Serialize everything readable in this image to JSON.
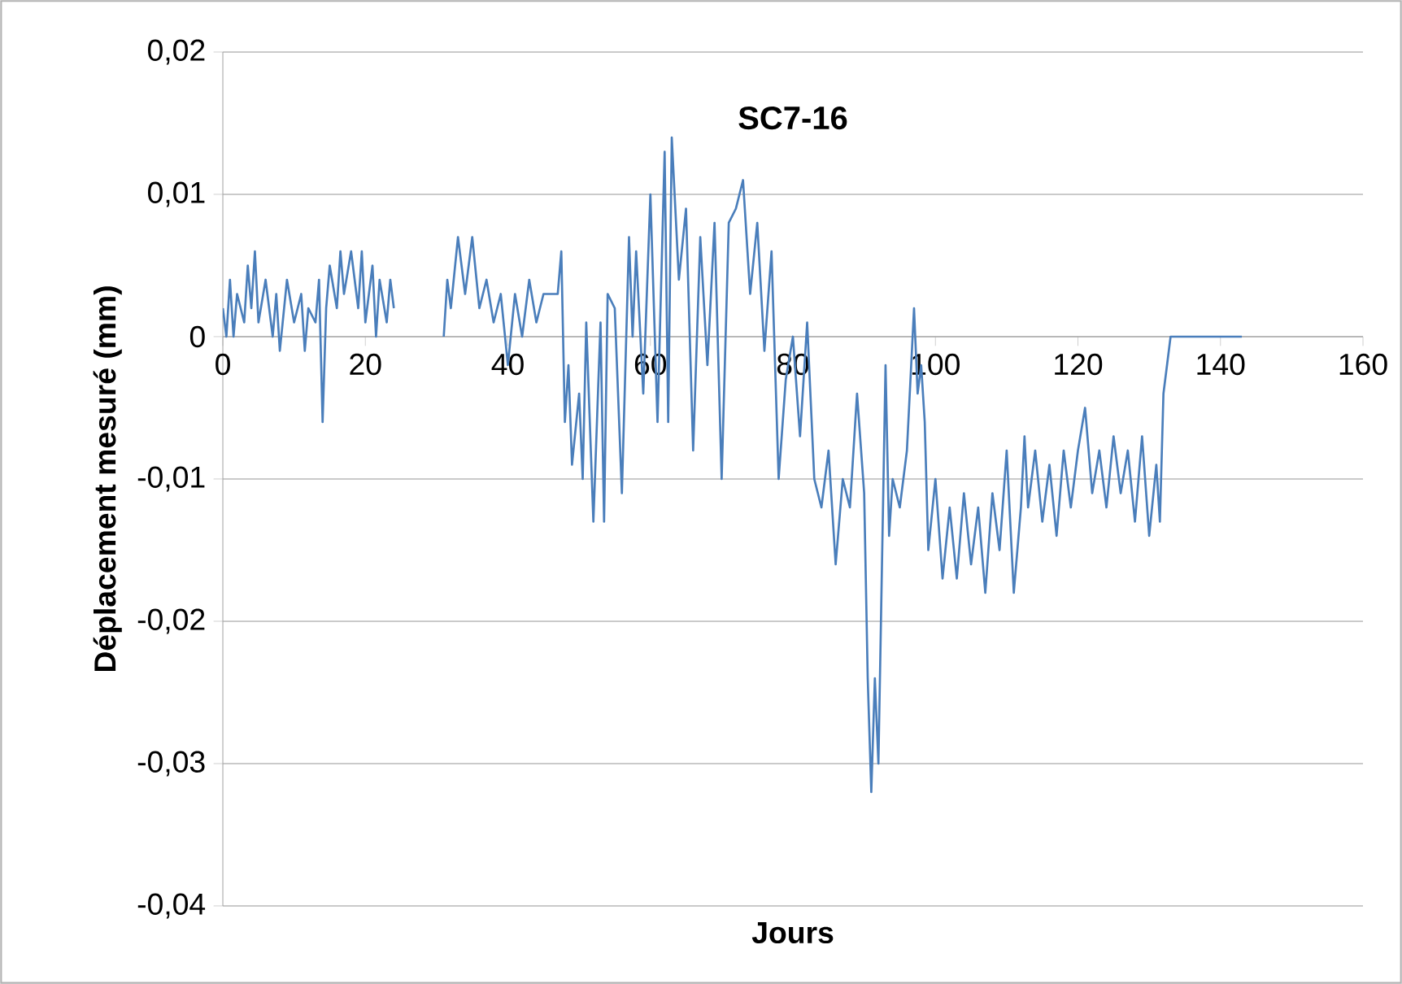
{
  "chart_data": {
    "type": "line",
    "title": "SC7-16",
    "xlabel": "Jours",
    "ylabel": "Déplacement mesuré (mm)",
    "color": "#4a7ebb",
    "grid": "y",
    "xlim": [
      0,
      160
    ],
    "xticks": [
      0,
      20,
      40,
      60,
      80,
      100,
      120,
      140,
      160
    ],
    "ylim": [
      -0.04,
      0.02
    ],
    "yticks": [
      {
        "value": -0.04,
        "label": "-0,04"
      },
      {
        "value": -0.03,
        "label": "-0,03"
      },
      {
        "value": -0.02,
        "label": "-0,02"
      },
      {
        "value": -0.01,
        "label": "-0,01"
      },
      {
        "value": 0,
        "label": "0"
      },
      {
        "value": 0.01,
        "label": "0,01"
      },
      {
        "value": 0.02,
        "label": "0,02"
      }
    ],
    "x": [
      0,
      0.5,
      1,
      1.5,
      2,
      3,
      3.5,
      4,
      4.5,
      5,
      6,
      7,
      7.5,
      8,
      9,
      10,
      11,
      11.5,
      12,
      13,
      13.5,
      14,
      14.5,
      15,
      16,
      16.5,
      17,
      18,
      19,
      19.5,
      20,
      21,
      21.5,
      22,
      23,
      23.5,
      24,
      27,
      31,
      31.5,
      32,
      33,
      34,
      35,
      36,
      37,
      38,
      39,
      40,
      41,
      42,
      43,
      44,
      45,
      46,
      47,
      47.5,
      48,
      48.5,
      49,
      50,
      50.5,
      51,
      52,
      53,
      53.5,
      54,
      55,
      56,
      57,
      57.5,
      58,
      59,
      60,
      61,
      62,
      62.5,
      63,
      64,
      65,
      66,
      67,
      68,
      69,
      70,
      71,
      72,
      73,
      74,
      75,
      76,
      77,
      78,
      79,
      80,
      81,
      82,
      83,
      84,
      85,
      86,
      87,
      88,
      89,
      90,
      90.5,
      91,
      91.5,
      92,
      92.5,
      93,
      93.5,
      94,
      95,
      96,
      97,
      97.5,
      98,
      98.5,
      99,
      100,
      101,
      102,
      103,
      104,
      105,
      106,
      107,
      108,
      109,
      110,
      111,
      112,
      112.5,
      113,
      114,
      115,
      116,
      117,
      118,
      119,
      120,
      121,
      122,
      123,
      124,
      125,
      126,
      127,
      128,
      129,
      130,
      131,
      131.5,
      132,
      133,
      143
    ],
    "values": [
      0.002,
      0,
      0.004,
      0,
      0.003,
      0.001,
      0.005,
      0.002,
      0.006,
      0.001,
      0.004,
      0,
      0.003,
      -0.001,
      0.004,
      0.001,
      0.003,
      -0.001,
      0.002,
      0.001,
      0.004,
      -0.006,
      0.002,
      0.005,
      0.002,
      0.006,
      0.003,
      0.006,
      0.002,
      0.006,
      0.001,
      0.005,
      0,
      0.004,
      0.001,
      0.004,
      0.002,
      null,
      0,
      0.004,
      0.002,
      0.007,
      0.003,
      0.007,
      0.002,
      0.004,
      0.001,
      0.003,
      -0.002,
      0.003,
      0,
      0.004,
      0.001,
      0.003,
      0.003,
      0.003,
      0.006,
      -0.006,
      -0.002,
      -0.009,
      -0.004,
      -0.01,
      0.001,
      -0.013,
      0.001,
      -0.013,
      0.003,
      0.002,
      -0.011,
      0.007,
      0,
      0.006,
      -0.004,
      0.01,
      -0.006,
      0.013,
      -0.006,
      0.014,
      0.004,
      0.009,
      -0.008,
      0.007,
      -0.002,
      0.008,
      -0.01,
      0.008,
      0.009,
      0.011,
      0.003,
      0.008,
      -0.001,
      0.006,
      -0.01,
      -0.003,
      0,
      -0.007,
      0.001,
      -0.01,
      -0.012,
      -0.008,
      -0.016,
      -0.01,
      -0.012,
      -0.004,
      -0.011,
      -0.024,
      -0.032,
      -0.024,
      -0.03,
      -0.016,
      -0.002,
      -0.014,
      -0.01,
      -0.012,
      -0.008,
      0.002,
      -0.004,
      -0.002,
      -0.006,
      -0.015,
      -0.01,
      -0.017,
      -0.012,
      -0.017,
      -0.011,
      -0.016,
      -0.012,
      -0.018,
      -0.011,
      -0.015,
      -0.008,
      -0.018,
      -0.012,
      -0.007,
      -0.012,
      -0.008,
      -0.013,
      -0.009,
      -0.014,
      -0.008,
      -0.012,
      -0.008,
      -0.005,
      -0.011,
      -0.008,
      -0.012,
      -0.007,
      -0.011,
      -0.008,
      -0.013,
      -0.007,
      -0.014,
      -0.009,
      -0.013,
      -0.004,
      0,
      0
    ]
  }
}
